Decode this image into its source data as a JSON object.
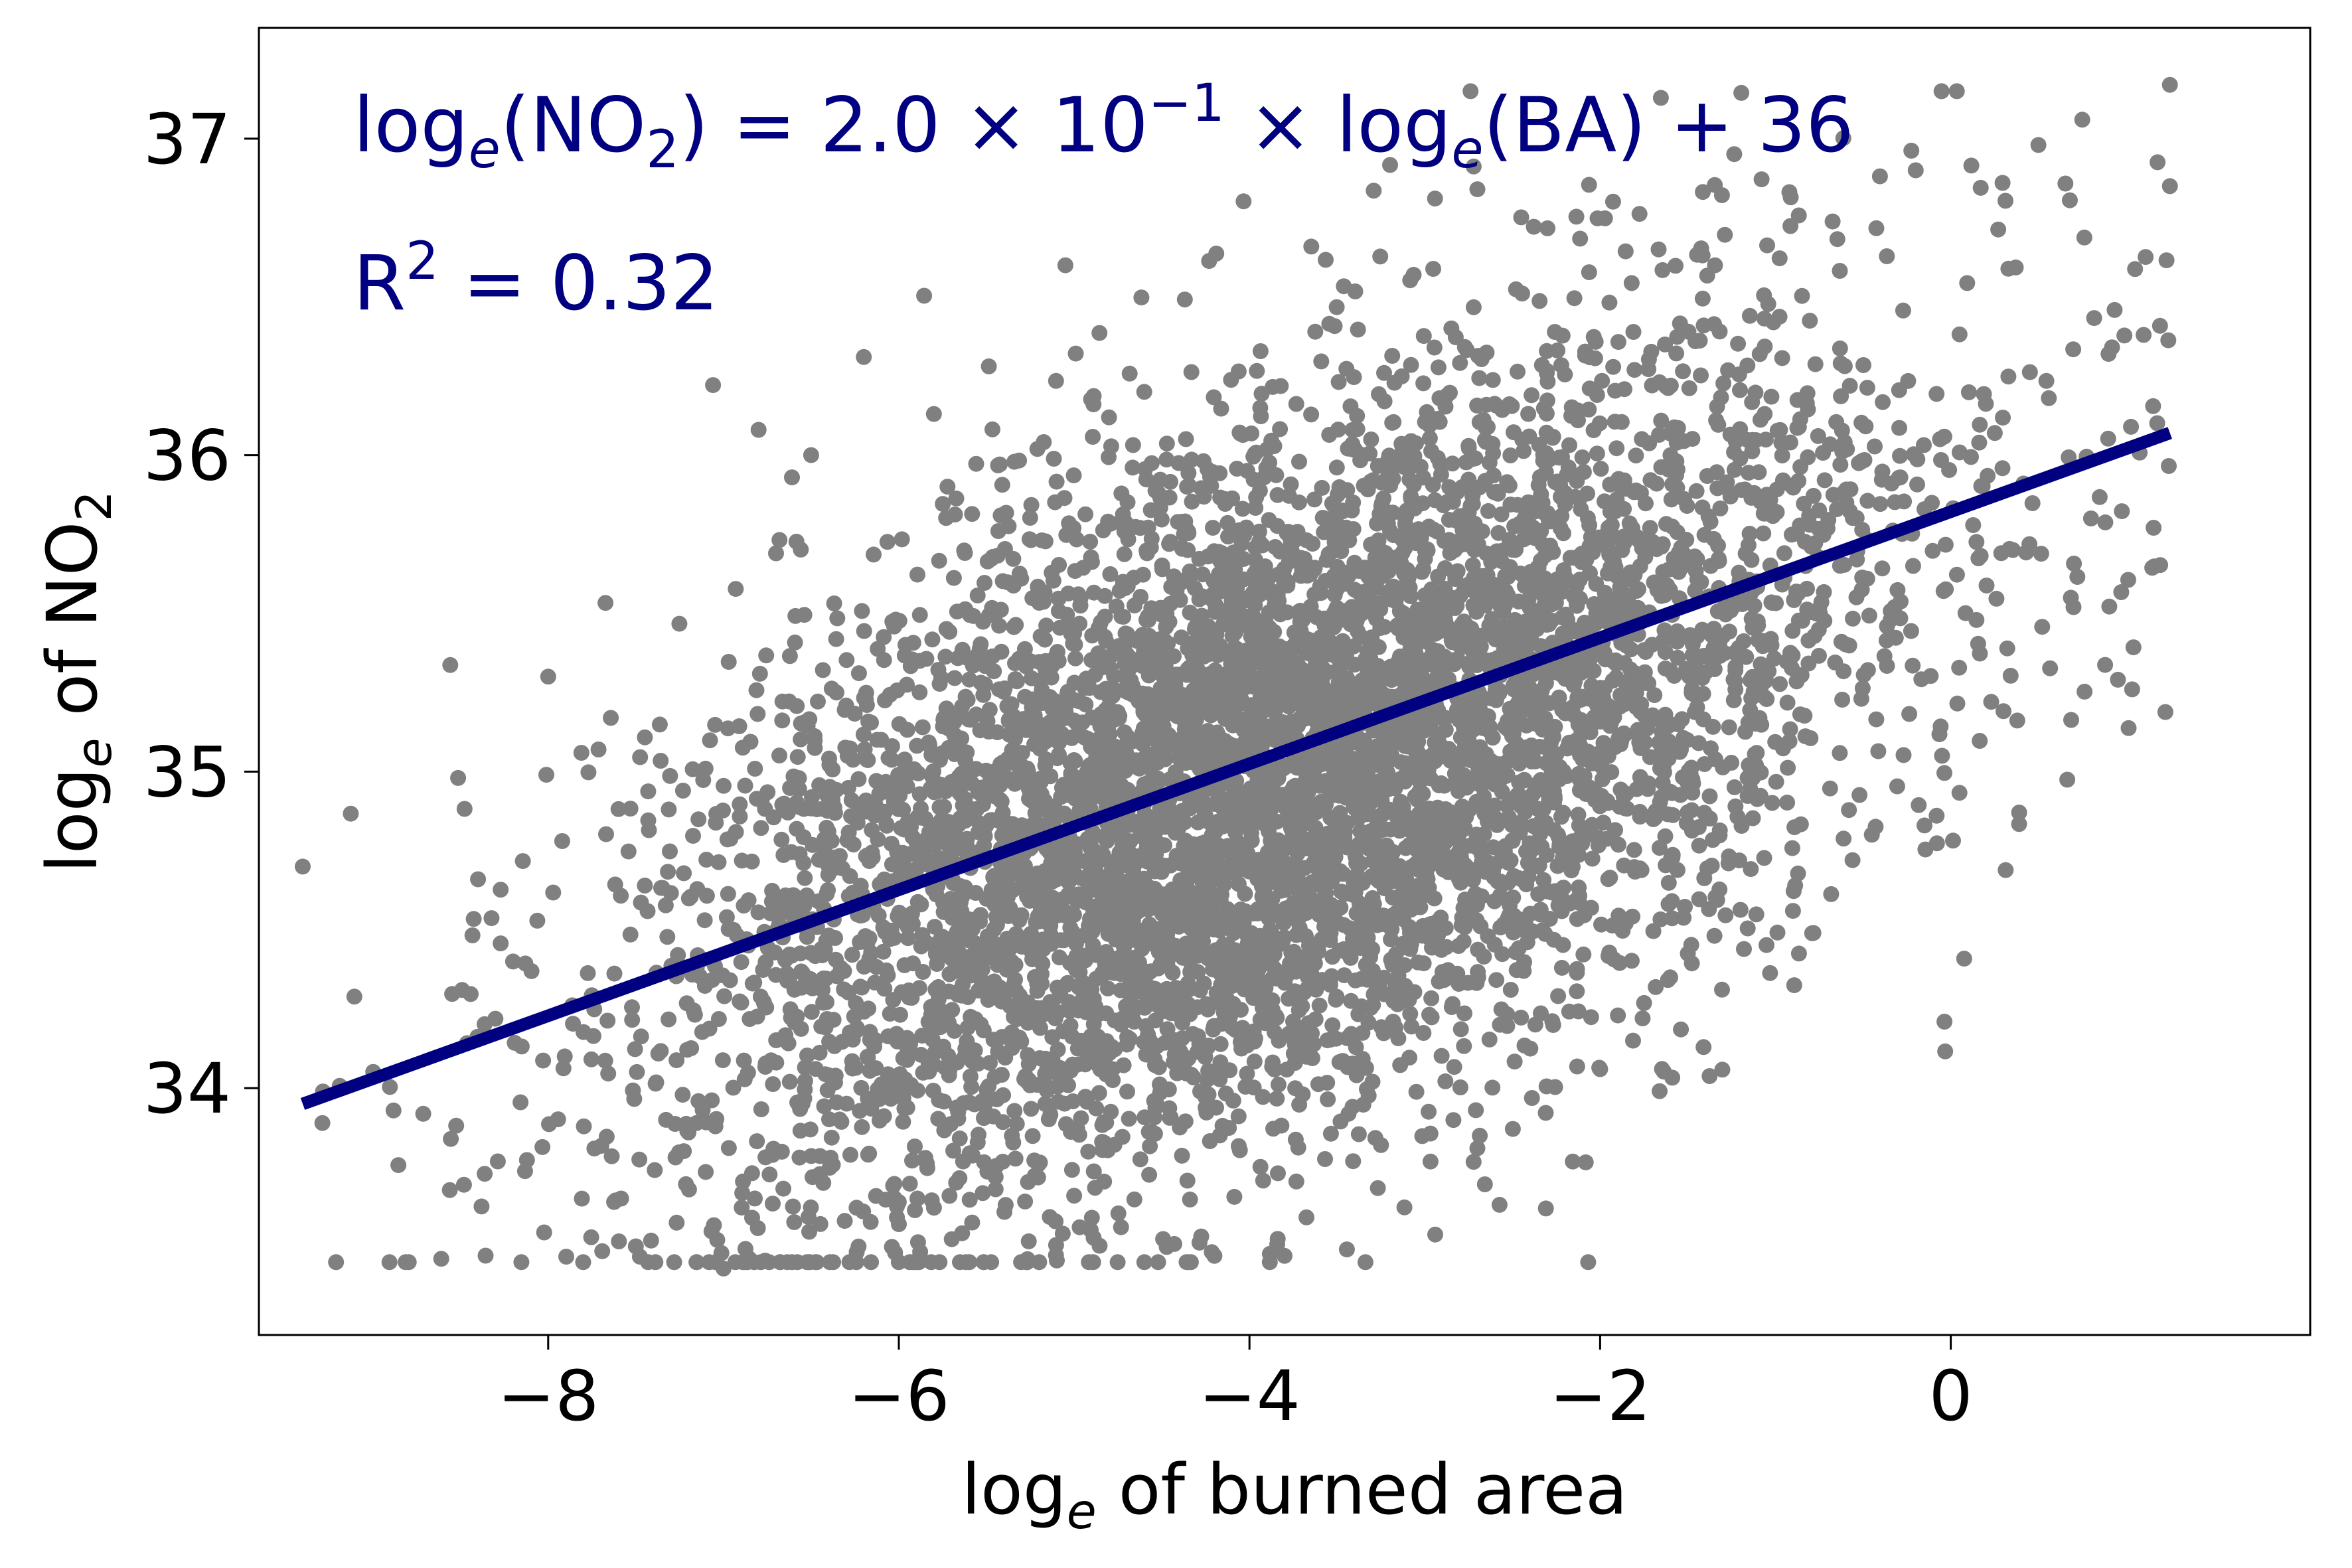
{
  "chart_data": {
    "type": "scatter",
    "xlabel": {
      "base": "log",
      "sub": "e",
      "rest": " of burned area"
    },
    "ylabel": {
      "base": "log",
      "sub": "e",
      "mid": " of NO",
      "sub2": "2"
    },
    "xlim": [
      -9.65,
      2.05
    ],
    "ylim": [
      33.22,
      37.35
    ],
    "xticks": [
      -8,
      -6,
      -4,
      -2,
      0
    ],
    "xtick_labels": [
      "−8",
      "−6",
      "−4",
      "−2",
      "0"
    ],
    "yticks": [
      34,
      35,
      36,
      37
    ],
    "ytick_labels": [
      "34",
      "35",
      "36",
      "37"
    ],
    "grid": false,
    "legend": "none",
    "colors": {
      "points": "#808080",
      "fit_line": "#000080",
      "annotation": "#000080",
      "axes": "#000000"
    },
    "equation": {
      "p1": "log",
      "p1_sub": "e",
      "p2": "(NO",
      "p2_sub": "2",
      "p3": ") = 2.0 × 10",
      "p3_sup": "−1",
      "p4": " × log",
      "p4_sub": "e",
      "p5": "(BA) + 36"
    },
    "r_squared": {
      "p1": "R",
      "p1_sup": "2",
      "p2": " = 0.32"
    },
    "fit_line": {
      "slope": 0.2,
      "x": [
        -9.4,
        1.25
      ],
      "y": [
        33.95,
        36.07
      ]
    },
    "scatter": {
      "n_points": 6500,
      "x_mean": -3.8,
      "x_sd": 1.75,
      "y_corr": 0.57,
      "y_sd": 0.55,
      "y_intercept": 35.8,
      "outliers": [
        {
          "x": -9.4,
          "y": 34.7
        },
        {
          "x": -8.4,
          "y": 34.66
        },
        {
          "x": -8.0,
          "y": 35.3
        },
        {
          "x": -8.2,
          "y": 34.4
        },
        {
          "x": -7.0,
          "y": 33.43
        },
        {
          "x": -7.5,
          "y": 33.5
        },
        {
          "x": -4.2,
          "y": 33.47
        },
        {
          "x": -3.8,
          "y": 33.47
        },
        {
          "x": -6.0,
          "y": 33.57
        },
        {
          "x": -5.05,
          "y": 36.6
        },
        {
          "x": -6.8,
          "y": 36.08
        },
        {
          "x": -5.8,
          "y": 36.13
        },
        {
          "x": -4.6,
          "y": 36.2
        },
        {
          "x": -6.5,
          "y": 36.0
        },
        {
          "x": 1.25,
          "y": 37.17
        },
        {
          "x": 1.25,
          "y": 36.85
        },
        {
          "x": 0.75,
          "y": 37.06
        },
        {
          "x": 0.5,
          "y": 36.98
        },
        {
          "x": -0.2,
          "y": 36.9
        },
        {
          "x": -2.7,
          "y": 36.84
        },
        {
          "x": 1.1,
          "y": 36.38
        },
        {
          "x": 0.9,
          "y": 36.32
        },
        {
          "x": 0.8,
          "y": 35.8
        },
        {
          "x": 0.7,
          "y": 35.52
        },
        {
          "x": -2.0,
          "y": 34.06
        },
        {
          "x": -1.6,
          "y": 34.35
        },
        {
          "x": -0.9,
          "y": 34.56
        },
        {
          "x": -2.7,
          "y": 33.81
        },
        {
          "x": -3.25,
          "y": 33.82
        },
        {
          "x": -5.0,
          "y": 33.66
        },
        {
          "x": -0.05,
          "y": 35.05
        },
        {
          "x": -0.15,
          "y": 34.83
        },
        {
          "x": -7.2,
          "y": 33.86
        }
      ]
    }
  }
}
